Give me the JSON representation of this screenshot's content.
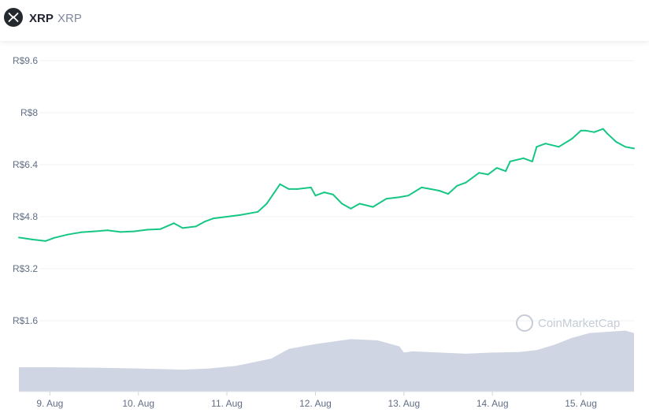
{
  "header": {
    "coin_name": "XRP",
    "coin_symbol": "XRP",
    "logo_icon": "xrp-logo-icon"
  },
  "watermark": "CoinMarketCap",
  "colors": {
    "price_line": "#16c784",
    "volume_fill": "#cfd5e2",
    "grid": "#eff2f5",
    "axis_text": "#616e85"
  },
  "chart_data": {
    "type": "line",
    "title": "",
    "y_tick_labels": [
      "R$9.6",
      "R$8",
      "R$6.4",
      "R$4.8",
      "R$3.2",
      "R$1.6"
    ],
    "y_ticks": [
      9.6,
      8,
      6.4,
      4.8,
      3.2,
      1.6
    ],
    "x_tick_labels": [
      "9. Aug",
      "10. Aug",
      "11. Aug",
      "12. Aug",
      "13. Aug",
      "14. Aug",
      "15. Aug"
    ],
    "x_ticks": [
      0.5,
      1.5,
      2.5,
      3.5,
      4.5,
      5.5,
      6.5
    ],
    "xlim": [
      0.15,
      7.1
    ],
    "ylim": [
      0.6,
      10.4
    ],
    "grid": true,
    "series": [
      {
        "kind": "price",
        "x": [
          0.15,
          0.3,
          0.45,
          0.55,
          0.7,
          0.85,
          1.0,
          1.15,
          1.3,
          1.45,
          1.6,
          1.75,
          1.9,
          2.0,
          2.15,
          2.25,
          2.35,
          2.5,
          2.65,
          2.85,
          2.95,
          3.1,
          3.2,
          3.3,
          3.45,
          3.5,
          3.6,
          3.7,
          3.8,
          3.9,
          4.0,
          4.15,
          4.3,
          4.45,
          4.55,
          4.7,
          4.8,
          4.9,
          5.0,
          5.1,
          5.2,
          5.35,
          5.45,
          5.55,
          5.65,
          5.7,
          5.85,
          5.95,
          6.0,
          6.1,
          6.25,
          6.4,
          6.5,
          6.55,
          6.65,
          6.75,
          6.8,
          6.9,
          7.0,
          7.1
        ],
        "values": [
          4.16,
          4.1,
          4.05,
          4.15,
          4.25,
          4.32,
          4.35,
          4.38,
          4.33,
          4.35,
          4.4,
          4.42,
          4.6,
          4.45,
          4.5,
          4.65,
          4.75,
          4.8,
          4.85,
          4.95,
          5.2,
          5.8,
          5.65,
          5.65,
          5.7,
          5.45,
          5.55,
          5.48,
          5.2,
          5.05,
          5.2,
          5.1,
          5.35,
          5.4,
          5.45,
          5.7,
          5.65,
          5.6,
          5.5,
          5.75,
          5.85,
          6.15,
          6.1,
          6.3,
          6.2,
          6.5,
          6.6,
          6.5,
          6.95,
          7.05,
          6.95,
          7.2,
          7.45,
          7.45,
          7.4,
          7.5,
          7.35,
          7.1,
          6.95,
          6.9
        ]
      },
      {
        "kind": "volume",
        "x": [
          0.15,
          0.5,
          1.0,
          1.5,
          2.0,
          2.3,
          2.6,
          3.0,
          3.2,
          3.5,
          3.9,
          4.2,
          4.45,
          4.5,
          4.6,
          4.9,
          5.2,
          5.5,
          5.8,
          6.0,
          6.2,
          6.4,
          6.6,
          6.8,
          7.0,
          7.1
        ],
        "values": [
          1.0,
          1.0,
          0.98,
          0.95,
          0.9,
          0.95,
          1.05,
          1.35,
          1.75,
          1.95,
          2.15,
          2.1,
          1.85,
          1.6,
          1.65,
          1.6,
          1.55,
          1.6,
          1.62,
          1.7,
          1.92,
          2.2,
          2.4,
          2.45,
          2.5,
          2.4
        ]
      }
    ]
  }
}
